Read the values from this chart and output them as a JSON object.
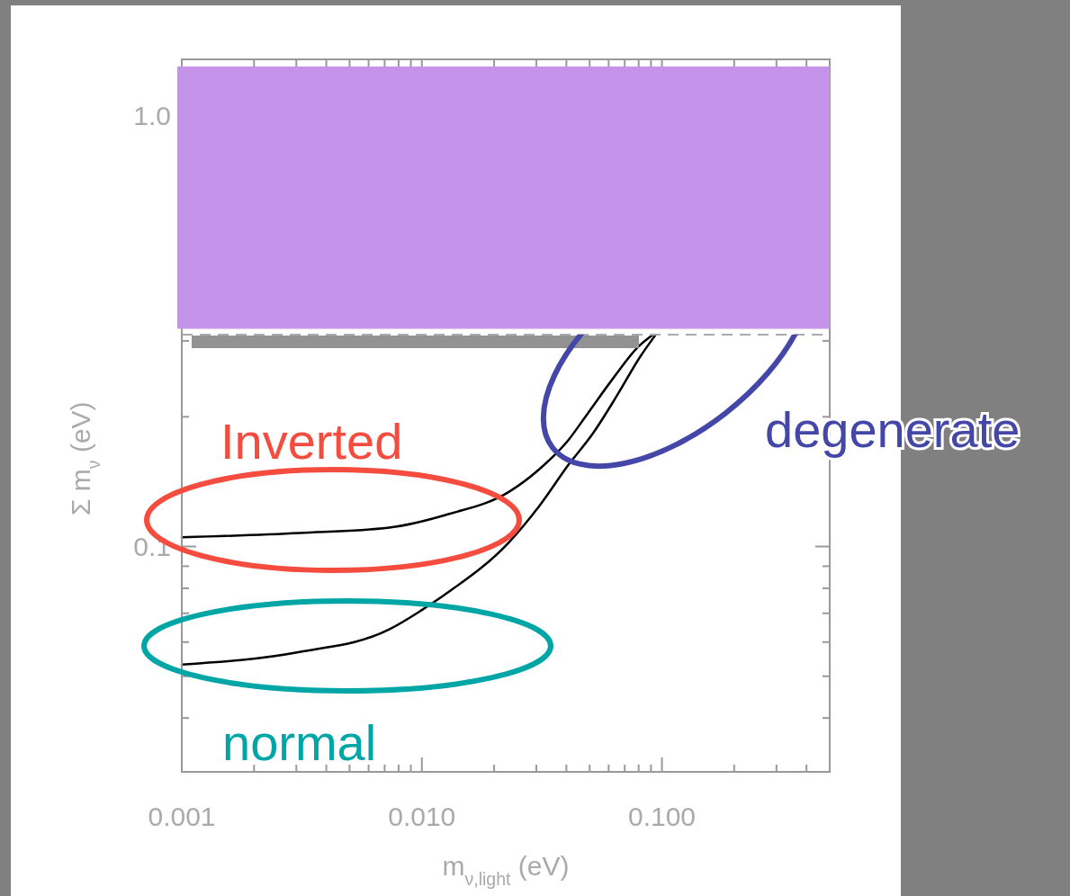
{
  "chart_data": {
    "type": "line",
    "xlabel": "m$_{ν,light}$ (eV)",
    "ylabel": "Σ m$_{ν}$ (eV)",
    "log": "xy",
    "xlim": [
      0.001,
      0.5
    ],
    "ylim": [
      0.03,
      1.35
    ],
    "xticks": [
      0.001,
      {
        "value": 0.002,
        "label": null
      },
      {
        "value": 0.003,
        "label": null
      },
      {
        "value": 0.004,
        "label": null
      },
      {
        "value": 0.005,
        "label": null
      },
      {
        "value": 0.006,
        "label": null
      },
      {
        "value": 0.007,
        "label": null
      },
      {
        "value": 0.008,
        "label": null
      },
      {
        "value": 0.009,
        "label": null
      },
      {
        "value": 0.01,
        "label": "0.010"
      },
      {
        "value": 0.02,
        "label": null
      },
      {
        "value": 0.03,
        "label": null
      },
      {
        "value": 0.04,
        "label": null
      },
      {
        "value": 0.05,
        "label": null
      },
      {
        "value": 0.06,
        "label": null
      },
      {
        "value": 0.07,
        "label": null
      },
      {
        "value": 0.08,
        "label": null
      },
      {
        "value": 0.09,
        "label": null
      },
      {
        "value": 0.1,
        "label": "0.100"
      },
      {
        "value": 0.2,
        "label": null
      },
      {
        "value": 0.3,
        "label": null
      },
      {
        "value": 0.4,
        "label": null
      }
    ],
    "yticks": [
      {
        "value": 0.04,
        "label": null
      },
      {
        "value": 0.05,
        "label": null
      },
      {
        "value": 0.06,
        "label": null
      },
      {
        "value": 0.07,
        "label": null
      },
      {
        "value": 0.08,
        "label": null
      },
      {
        "value": 0.09,
        "label": null
      },
      0.1,
      {
        "value": 0.2,
        "label": null
      },
      {
        "value": 0.3,
        "label": null
      },
      {
        "value": 1,
        "label": "1.0"
      }
    ],
    "marker": "none",
    "line_style": "solid",
    "series": [
      {
        "color": "#000000",
        "x": [
          0.001,
          0.00309,
          0.00731,
          0.013,
          0.0231,
          0.0308,
          0.0409,
          0.0486,
          0.0631,
          0.0794,
          0.0918
        ],
        "values": [
          0.105,
          0.1075,
          0.1106,
          0.119,
          0.134,
          0.151,
          0.177,
          0.202,
          0.247,
          0.29,
          0.31
        ]
      },
      {
        "color": "#000000",
        "x": [
          0.001,
          0.00309,
          0.00731,
          0.0098,
          0.013,
          0.0231,
          0.0308,
          0.0409,
          0.0516,
          0.065,
          0.0813,
          0.0942
        ],
        "values": [
          0.0532,
          0.0569,
          0.0642,
          0.0707,
          0.0786,
          0.1024,
          0.124,
          0.155,
          0.183,
          0.224,
          0.276,
          0.31
        ]
      }
    ],
    "bands": [
      {
        "axis": "y",
        "from": 0.32,
        "to": 1.3,
        "color": "#c593e9"
      }
    ],
    "ref_lines": [
      {
        "axis": "y",
        "value": 0.31,
        "color": "#aaaaaa",
        "line_style": "dashed"
      }
    ],
    "annotations": [
      "Inverted",
      "normal",
      "degenerate"
    ]
  }
}
